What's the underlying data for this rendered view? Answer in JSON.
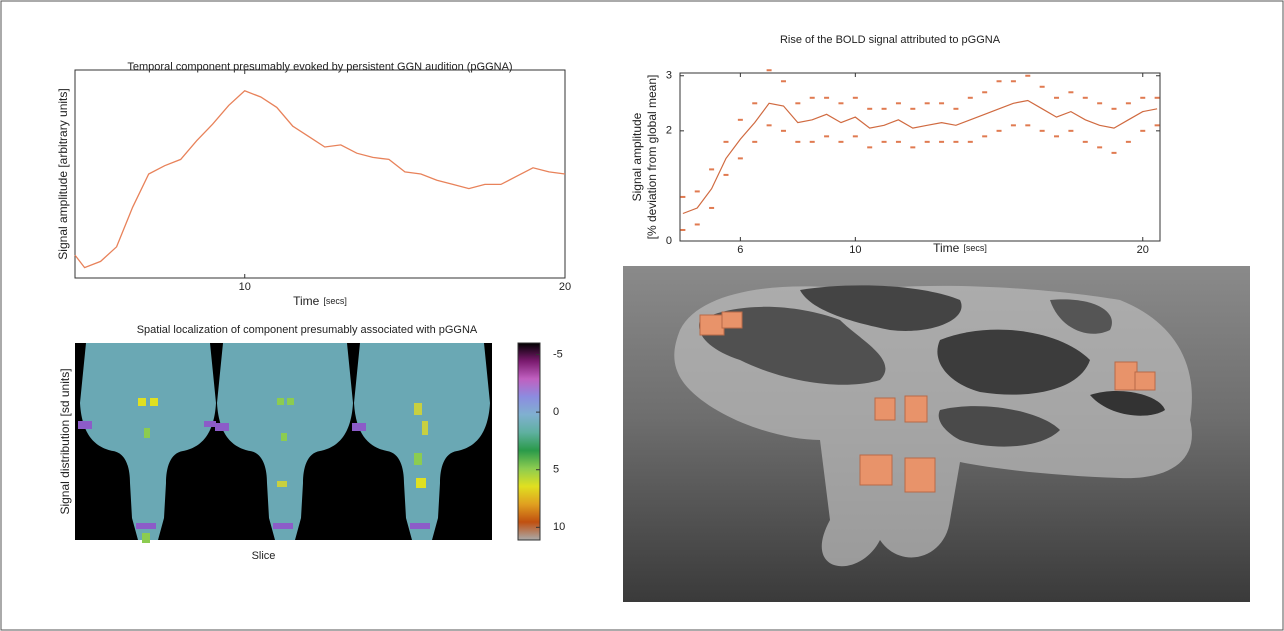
{
  "chart_data": [
    {
      "type": "line",
      "title": "Temporal component presumably evoked by persistent GGN audition (pGGNA)",
      "ylabel": "Signal amplitude [arbitrary units]",
      "xlabel": "Time",
      "xlabel_unit": "[secs]",
      "x": [
        4.7,
        5,
        5.5,
        6,
        6.5,
        7,
        7.5,
        8,
        8.5,
        9,
        9.5,
        10,
        10.5,
        11,
        11.5,
        12,
        12.5,
        13,
        13.5,
        14,
        14.5,
        15,
        15.5,
        16,
        16.5,
        17,
        17.5,
        18,
        18.5,
        19,
        19.5,
        20
      ],
      "values": [
        0.11,
        0.05,
        0.08,
        0.15,
        0.34,
        0.5,
        0.54,
        0.57,
        0.66,
        0.74,
        0.83,
        0.9,
        0.87,
        0.82,
        0.73,
        0.68,
        0.63,
        0.64,
        0.6,
        0.58,
        0.57,
        0.51,
        0.5,
        0.47,
        0.45,
        0.43,
        0.45,
        0.45,
        0.49,
        0.53,
        0.51,
        0.5
      ],
      "color": "#e8825a",
      "xlim": [
        4.7,
        20
      ],
      "ylim": [
        0,
        1
      ],
      "xticks": [
        10,
        20
      ]
    },
    {
      "type": "scatter",
      "title": "Rise of the BOLD signal attributed to pGGNA",
      "ylabel": [
        "Signal amplitude",
        "[% deviation from global mean]"
      ],
      "xlabel": "Time",
      "xlabel_unit": "[secs]",
      "xlim": [
        3.9,
        20.6
      ],
      "ylim": [
        0,
        3.05
      ],
      "xticks": [
        6,
        10,
        20
      ],
      "yticks": [
        0,
        2,
        3
      ],
      "series": [
        {
          "marker": "dot",
          "color": "#e07a50",
          "x": [
            4,
            4.5,
            5,
            5.5,
            6,
            6.5,
            7,
            7.5,
            8,
            8.5,
            9,
            9.5,
            10,
            10.5,
            11,
            11.5,
            12,
            12.5,
            13,
            13.5,
            14,
            14.5,
            15,
            15.5,
            16,
            16.5,
            17,
            17.5,
            18,
            18.5,
            19,
            19.5,
            20,
            20.5,
            4,
            4.5,
            5,
            5.5,
            6,
            6.5,
            7,
            7.5,
            8,
            8.5,
            9,
            9.5,
            10,
            10.5,
            11,
            11.5,
            12,
            12.5,
            13,
            13.5,
            14,
            14.5,
            15,
            15.5,
            16,
            16.5,
            17,
            17.5,
            18,
            18.5,
            19,
            19.5,
            20,
            20.5
          ],
          "values": [
            0.8,
            0.9,
            1.3,
            1.8,
            2.2,
            2.5,
            3.1,
            2.9,
            2.5,
            2.6,
            2.6,
            2.5,
            2.6,
            2.4,
            2.4,
            2.5,
            2.4,
            2.5,
            2.5,
            2.4,
            2.6,
            2.7,
            2.9,
            2.9,
            3.0,
            2.8,
            2.6,
            2.7,
            2.6,
            2.5,
            2.4,
            2.5,
            2.6,
            2.6,
            0.2,
            0.3,
            0.6,
            1.2,
            1.5,
            1.8,
            2.1,
            2.0,
            1.8,
            1.8,
            1.9,
            1.8,
            1.9,
            1.7,
            1.8,
            1.8,
            1.7,
            1.8,
            1.8,
            1.8,
            1.8,
            1.9,
            2.0,
            2.1,
            2.1,
            2.0,
            1.9,
            2.0,
            1.8,
            1.7,
            1.6,
            1.8,
            2.0,
            2.1
          ]
        },
        {
          "marker": "line",
          "color": "#d06a40",
          "x": [
            4,
            4.5,
            5,
            5.5,
            6,
            6.5,
            7,
            7.5,
            8,
            8.5,
            9,
            9.5,
            10,
            10.5,
            11,
            11.5,
            12,
            12.5,
            13,
            13.5,
            14,
            14.5,
            15,
            15.5,
            16,
            16.5,
            17,
            17.5,
            18,
            18.5,
            19,
            19.5,
            20,
            20.5
          ],
          "values": [
            0.5,
            0.6,
            0.95,
            1.5,
            1.85,
            2.15,
            2.5,
            2.45,
            2.15,
            2.2,
            2.3,
            2.15,
            2.25,
            2.05,
            2.1,
            2.2,
            2.05,
            2.1,
            2.15,
            2.1,
            2.2,
            2.3,
            2.4,
            2.5,
            2.55,
            2.4,
            2.25,
            2.35,
            2.2,
            2.1,
            2.05,
            2.2,
            2.35,
            2.4
          ]
        }
      ]
    },
    {
      "type": "heatmap",
      "title": "Spatial localization of component presumably associated with pGGNA",
      "ylabel": "Signal distribution [sd units]",
      "xlabel": "Slice",
      "clim": [
        -6,
        11.1
      ],
      "cticks": [
        -5,
        0,
        5,
        10
      ],
      "colormap": [
        "#000000",
        "#7a1a6e",
        "#c060c0",
        "#8c8ce0",
        "#80b0d0",
        "#5fb0a0",
        "#2a9a4a",
        "#8ccc50",
        "#e0e020",
        "#e0a020",
        "#c05010",
        "#aaaaaa"
      ]
    }
  ]
}
